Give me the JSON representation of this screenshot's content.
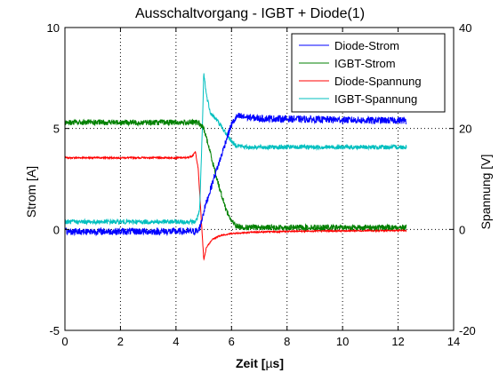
{
  "chart_data": {
    "type": "line",
    "title": "Ausschaltvorgang - IGBT + Diode(1)",
    "xlabel": "Zeit [µs]",
    "ylabel": "Strom [A]",
    "y2label": "Spannung [V]",
    "xlim": [
      0,
      14
    ],
    "ylim": [
      -5,
      10
    ],
    "y2lim": [
      -20,
      40
    ],
    "xticks": [
      "0",
      "2",
      "4",
      "6",
      "8",
      "10",
      "12",
      "14"
    ],
    "yticks": [
      "-5",
      "0",
      "5",
      "10"
    ],
    "y2ticks": [
      "-20",
      "0",
      "20",
      "40"
    ],
    "grid": true,
    "legend_position": "top-right",
    "series": [
      {
        "name": "Diode-Strom",
        "color": "#0000ff",
        "axis": "left",
        "x": [
          0,
          4.8,
          4.9,
          5.0,
          5.2,
          5.4,
          5.6,
          5.8,
          6.0,
          6.2,
          7,
          9,
          11,
          12.3
        ],
        "y": [
          -0.1,
          -0.1,
          0.3,
          0.9,
          1.8,
          2.7,
          3.5,
          4.4,
          5.2,
          5.6,
          5.5,
          5.45,
          5.4,
          5.4
        ]
      },
      {
        "name": "IGBT-Strom",
        "color": "#008000",
        "axis": "left",
        "x": [
          0,
          4.6,
          4.8,
          5.0,
          5.2,
          5.4,
          5.6,
          5.8,
          6.0,
          6.2,
          6.5,
          8,
          10,
          12.3
        ],
        "y": [
          5.3,
          5.3,
          5.3,
          5.0,
          4.0,
          2.9,
          1.9,
          1.0,
          0.4,
          0.15,
          0.1,
          0.1,
          0.1,
          0.1
        ]
      },
      {
        "name": "Diode-Spannung",
        "color": "#ff0000",
        "axis": "right",
        "x": [
          0,
          4.4,
          4.6,
          4.7,
          4.8,
          4.9,
          5.0,
          5.1,
          5.3,
          5.6,
          6.0,
          7,
          9,
          12.3
        ],
        "y": [
          14.2,
          14.2,
          14.6,
          15.4,
          12.0,
          3.0,
          -6.0,
          -3.5,
          -2.0,
          -1.2,
          -0.8,
          -0.5,
          -0.3,
          -0.2
        ]
      },
      {
        "name": "IGBT-Spannung",
        "color": "#00bfbf",
        "axis": "right",
        "x": [
          0,
          4.7,
          4.85,
          4.95,
          5.0,
          5.1,
          5.25,
          5.5,
          5.8,
          6.1,
          6.5,
          8,
          10,
          12.3
        ],
        "y": [
          1.5,
          1.5,
          3.5,
          20.0,
          31.0,
          26.5,
          23.0,
          21.5,
          19.0,
          16.8,
          16.3,
          16.3,
          16.3,
          16.3
        ]
      }
    ]
  }
}
